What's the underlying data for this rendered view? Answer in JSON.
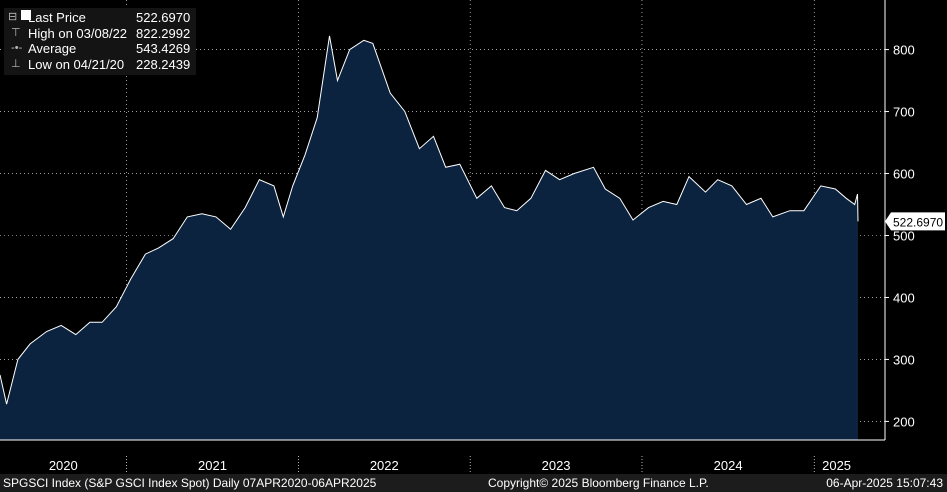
{
  "legend": {
    "last_label": "Last Price",
    "last_value": "522.6970",
    "high_label": "High on 03/08/22",
    "high_value": "822.2992",
    "avg_label": "Average",
    "avg_value": "543.4269",
    "low_label": "Low on 04/21/20",
    "low_value": "228.2439"
  },
  "footer": {
    "left": "SPGSCI Index (S&P GSCI Index Spot)  Daily 07APR2020-06APR2025",
    "center": "Copyright© 2025 Bloomberg Finance L.P.",
    "right": "06-Apr-2025 15:07:43"
  },
  "chart_data": {
    "type": "area",
    "title": "",
    "xlabel": "",
    "ylabel": "",
    "ylim": [
      170,
      880
    ],
    "xlim": [
      "2020-04-07",
      "2025-04-06"
    ],
    "yticks": [
      200,
      300,
      400,
      500,
      600,
      700,
      800
    ],
    "xtick_labels": [
      "2020",
      "2021",
      "2022",
      "2023",
      "2024",
      "2025"
    ],
    "last_price_label": "522.6970",
    "colors": {
      "area": "#0c2340",
      "line": "#ffffff",
      "grid": "#ffffff"
    },
    "grid": true,
    "x": [
      "2020-04-07",
      "2020-04-21",
      "2020-05-15",
      "2020-06-10",
      "2020-07-15",
      "2020-08-15",
      "2020-09-15",
      "2020-10-15",
      "2020-11-10",
      "2020-12-10",
      "2021-01-10",
      "2021-02-10",
      "2021-03-10",
      "2021-04-10",
      "2021-05-10",
      "2021-06-10",
      "2021-07-10",
      "2021-08-10",
      "2021-09-10",
      "2021-10-10",
      "2021-11-10",
      "2021-11-30",
      "2021-12-20",
      "2022-01-15",
      "2022-02-10",
      "2022-03-08",
      "2022-03-25",
      "2022-04-20",
      "2022-05-20",
      "2022-06-08",
      "2022-07-15",
      "2022-08-15",
      "2022-09-15",
      "2022-10-15",
      "2022-11-10",
      "2022-12-10",
      "2023-01-15",
      "2023-02-15",
      "2023-03-15",
      "2023-04-10",
      "2023-05-10",
      "2023-06-10",
      "2023-07-10",
      "2023-08-10",
      "2023-09-20",
      "2023-10-15",
      "2023-11-15",
      "2023-12-13",
      "2024-01-15",
      "2024-02-15",
      "2024-03-15",
      "2024-04-10",
      "2024-05-15",
      "2024-06-10",
      "2024-07-10",
      "2024-08-10",
      "2024-09-10",
      "2024-10-05",
      "2024-11-10",
      "2024-12-10",
      "2025-01-15",
      "2025-02-15",
      "2025-03-10",
      "2025-03-28",
      "2025-04-03",
      "2025-04-04"
    ],
    "values": [
      275,
      228,
      300,
      325,
      345,
      355,
      340,
      360,
      360,
      385,
      430,
      470,
      480,
      495,
      530,
      535,
      530,
      510,
      545,
      590,
      580,
      530,
      580,
      630,
      690,
      822,
      750,
      800,
      815,
      810,
      730,
      700,
      640,
      660,
      610,
      615,
      560,
      580,
      545,
      540,
      560,
      605,
      590,
      600,
      610,
      575,
      560,
      525,
      545,
      555,
      550,
      595,
      570,
      590,
      580,
      550,
      560,
      530,
      540,
      540,
      580,
      575,
      560,
      550,
      567,
      522.697
    ]
  }
}
